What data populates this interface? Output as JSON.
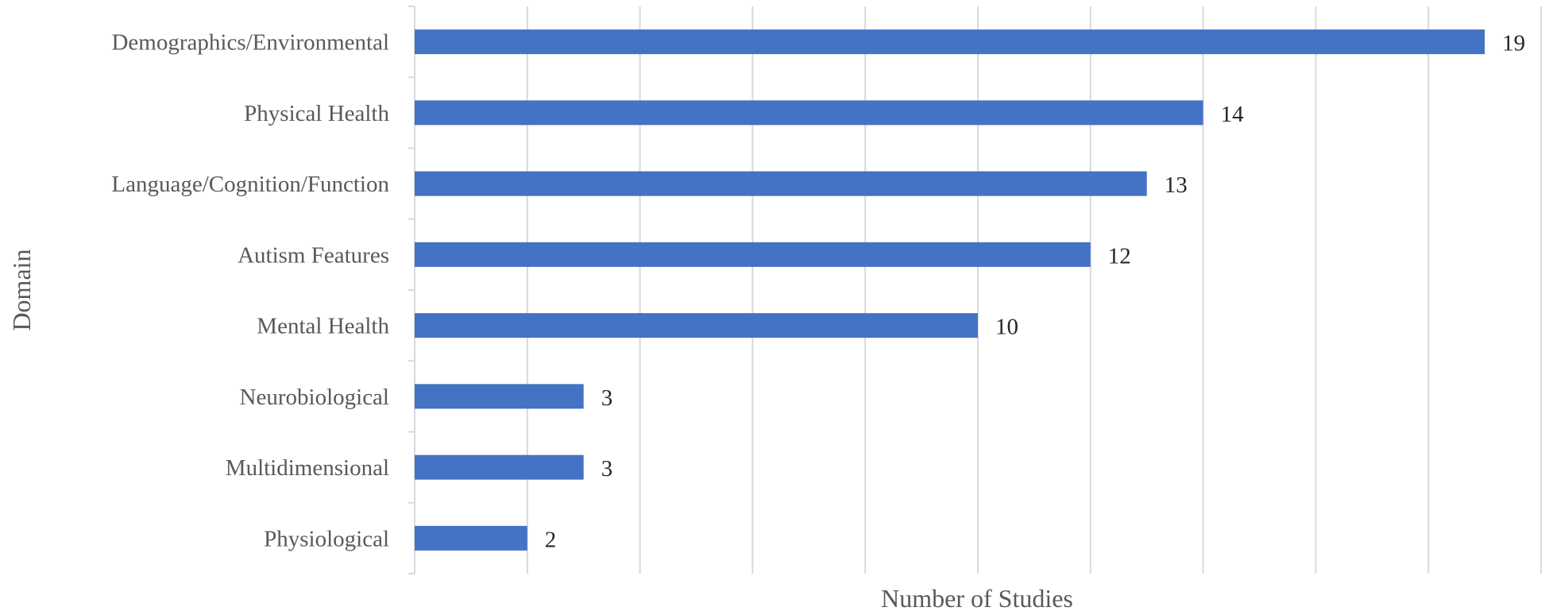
{
  "chart_data": {
    "type": "bar",
    "orientation": "horizontal",
    "categories": [
      "Demographics/Environmental",
      "Physical Health",
      "Language/Cognition/Function",
      "Autism Features",
      "Mental Health",
      "Neurobiological",
      "Multidimensional",
      "Physiological"
    ],
    "values": [
      19,
      14,
      13,
      12,
      10,
      3,
      3,
      2
    ],
    "xlabel": "Number of Studies",
    "ylabel": "Domain",
    "xlim": [
      0,
      20
    ],
    "grid": "vertical",
    "legend": "none",
    "bar_color": "#4472c4"
  }
}
